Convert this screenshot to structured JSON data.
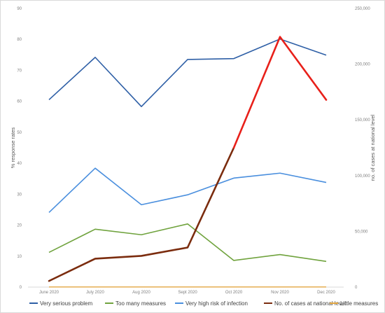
{
  "chart_data": {
    "type": "line",
    "title": "",
    "categories": [
      "June 2020",
      "July 2020",
      "Aug 2020",
      "Sept 2020",
      "Oct 2020",
      "Nov 2020",
      "Dec 2020"
    ],
    "ylabel_left": "% response rates",
    "ylabel_right": "no. of cases at national level",
    "ylim_left": [
      0,
      90
    ],
    "ylim_right": [
      0,
      250000
    ],
    "yticks_left": [
      "0",
      "10",
      "20",
      "30",
      "40",
      "50",
      "60",
      "70",
      "80",
      "90"
    ],
    "yticks_right": [
      "0",
      "50,000",
      "100,000",
      "150,000",
      "200,000",
      "250,000"
    ],
    "grid": false,
    "legend_position": "bottom",
    "series": [
      {
        "name": "Very serious problem",
        "axis": "left",
        "color": "#2e5fa6",
        "values": [
          60.5,
          74.2,
          58.3,
          73.5,
          73.8,
          80.1,
          74.9
        ]
      },
      {
        "name": "Too many measures",
        "axis": "left",
        "color": "#70a33e",
        "values": [
          11.2,
          18.7,
          16.9,
          20.4,
          8.6,
          10.5,
          8.3
        ]
      },
      {
        "name": "Very high risk of infection",
        "axis": "left",
        "color": "#4a8fde",
        "values": [
          24.1,
          38.4,
          26.6,
          29.8,
          35.2,
          36.8,
          33.8
        ]
      },
      {
        "name": "No. of cases at national level",
        "axis": "right",
        "color": "#7b2c0e",
        "highlight_color": "#e8201a",
        "values": [
          5500,
          25500,
          28000,
          35500,
          125000,
          224500,
          168000
        ]
      },
      {
        "name": "Little measures",
        "axis": "left",
        "color": "#e3a640",
        "values": [
          0.05,
          0.05,
          0.05,
          0.05,
          0.05,
          0.05,
          0.05
        ]
      }
    ]
  }
}
